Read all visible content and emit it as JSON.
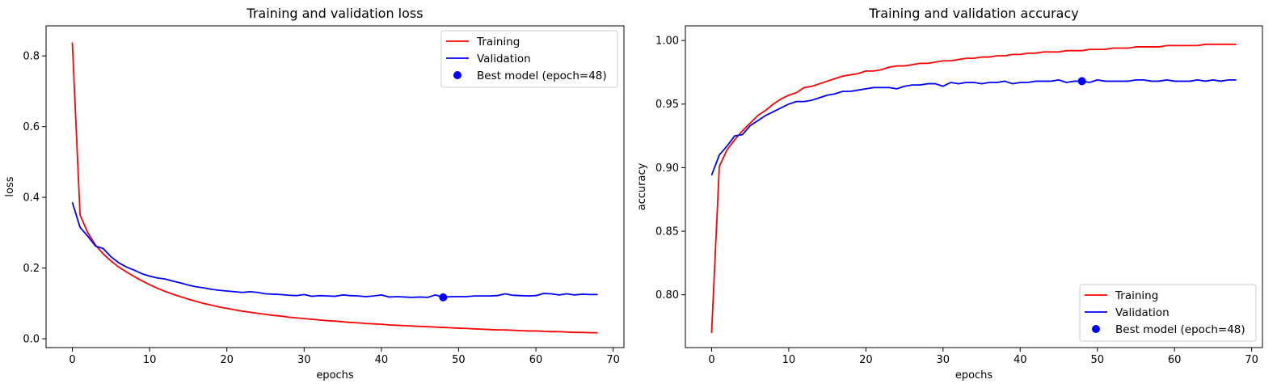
{
  "chart_data": [
    {
      "type": "line",
      "title": "Training and validation loss",
      "xlabel": "epochs",
      "ylabel": "loss",
      "xlim": [
        -3.4,
        71.4
      ],
      "ylim": [
        -0.025,
        0.885
      ],
      "xticks": [
        "0",
        "10",
        "20",
        "30",
        "40",
        "50",
        "60",
        "70"
      ],
      "yticks": [
        "0.0",
        "0.2",
        "0.4",
        "0.6",
        "0.8"
      ],
      "legend_position": "upper right",
      "series": [
        {
          "name": "Training",
          "color": "#ff0000",
          "x": [
            0,
            1,
            2,
            3,
            4,
            5,
            6,
            7,
            8,
            9,
            10,
            11,
            12,
            13,
            14,
            15,
            16,
            17,
            18,
            19,
            20,
            21,
            22,
            23,
            24,
            25,
            26,
            27,
            28,
            29,
            30,
            31,
            32,
            33,
            34,
            35,
            36,
            37,
            38,
            39,
            40,
            41,
            42,
            43,
            44,
            45,
            46,
            47,
            48,
            49,
            50,
            51,
            52,
            53,
            54,
            55,
            56,
            57,
            58,
            59,
            60,
            61,
            62,
            63,
            64,
            65,
            66,
            67,
            68
          ],
          "y": [
            0.838,
            0.35,
            0.3,
            0.265,
            0.24,
            0.22,
            0.203,
            0.189,
            0.176,
            0.164,
            0.153,
            0.143,
            0.134,
            0.126,
            0.119,
            0.112,
            0.106,
            0.1,
            0.095,
            0.09,
            0.086,
            0.082,
            0.078,
            0.075,
            0.072,
            0.069,
            0.066,
            0.064,
            0.061,
            0.059,
            0.057,
            0.055,
            0.053,
            0.051,
            0.05,
            0.048,
            0.046,
            0.045,
            0.043,
            0.042,
            0.041,
            0.039,
            0.038,
            0.037,
            0.036,
            0.035,
            0.034,
            0.033,
            0.032,
            0.031,
            0.03,
            0.029,
            0.028,
            0.027,
            0.026,
            0.025,
            0.025,
            0.024,
            0.023,
            0.022,
            0.022,
            0.021,
            0.02,
            0.02,
            0.019,
            0.018,
            0.018,
            0.017,
            0.017
          ]
        },
        {
          "name": "Validation",
          "color": "#0000ff",
          "x": [
            0,
            1,
            2,
            3,
            4,
            5,
            6,
            7,
            8,
            9,
            10,
            11,
            12,
            13,
            14,
            15,
            16,
            17,
            18,
            19,
            20,
            21,
            22,
            23,
            24,
            25,
            26,
            27,
            28,
            29,
            30,
            31,
            32,
            33,
            34,
            35,
            36,
            37,
            38,
            39,
            40,
            41,
            42,
            43,
            44,
            45,
            46,
            47,
            48,
            49,
            50,
            51,
            52,
            53,
            54,
            55,
            56,
            57,
            58,
            59,
            60,
            61,
            62,
            63,
            64,
            65,
            66,
            67,
            68
          ],
          "y": [
            0.386,
            0.315,
            0.29,
            0.262,
            0.255,
            0.232,
            0.215,
            0.203,
            0.194,
            0.184,
            0.177,
            0.172,
            0.169,
            0.163,
            0.158,
            0.152,
            0.147,
            0.144,
            0.14,
            0.137,
            0.135,
            0.133,
            0.131,
            0.133,
            0.131,
            0.127,
            0.126,
            0.125,
            0.123,
            0.122,
            0.125,
            0.12,
            0.122,
            0.121,
            0.12,
            0.124,
            0.122,
            0.121,
            0.119,
            0.121,
            0.124,
            0.118,
            0.119,
            0.118,
            0.117,
            0.118,
            0.117,
            0.124,
            0.117,
            0.119,
            0.119,
            0.119,
            0.121,
            0.121,
            0.121,
            0.122,
            0.127,
            0.123,
            0.122,
            0.121,
            0.122,
            0.128,
            0.127,
            0.124,
            0.127,
            0.124,
            0.126,
            0.125,
            0.125
          ]
        },
        {
          "name": "Best model (epoch=48)",
          "type": "scatter",
          "color": "#0000ff",
          "x": [
            48
          ],
          "y": [
            0.117
          ]
        }
      ]
    },
    {
      "type": "line",
      "title": "Training and validation accuracy",
      "xlabel": "epochs",
      "ylabel": "accuracy",
      "xlim": [
        -3.4,
        71.4
      ],
      "ylim": [
        0.7585,
        1.0115
      ],
      "xticks": [
        "0",
        "10",
        "20",
        "30",
        "40",
        "50",
        "60",
        "70"
      ],
      "yticks": [
        "0.80",
        "0.85",
        "0.90",
        "0.95",
        "1.00"
      ],
      "legend_position": "lower right",
      "series": [
        {
          "name": "Training",
          "color": "#ff0000",
          "x": [
            0,
            1,
            2,
            3,
            4,
            5,
            6,
            7,
            8,
            9,
            10,
            11,
            12,
            13,
            14,
            15,
            16,
            17,
            18,
            19,
            20,
            21,
            22,
            23,
            24,
            25,
            26,
            27,
            28,
            29,
            30,
            31,
            32,
            33,
            34,
            35,
            36,
            37,
            38,
            39,
            40,
            41,
            42,
            43,
            44,
            45,
            46,
            47,
            48,
            49,
            50,
            51,
            52,
            53,
            54,
            55,
            56,
            57,
            58,
            59,
            60,
            61,
            62,
            63,
            64,
            65,
            66,
            67,
            68
          ],
          "y": [
            0.77,
            0.901,
            0.914,
            0.922,
            0.929,
            0.935,
            0.941,
            0.945,
            0.95,
            0.954,
            0.957,
            0.959,
            0.963,
            0.964,
            0.966,
            0.968,
            0.97,
            0.972,
            0.973,
            0.974,
            0.976,
            0.976,
            0.977,
            0.979,
            0.98,
            0.98,
            0.981,
            0.982,
            0.982,
            0.983,
            0.984,
            0.984,
            0.985,
            0.986,
            0.986,
            0.987,
            0.987,
            0.988,
            0.988,
            0.989,
            0.989,
            0.99,
            0.99,
            0.991,
            0.991,
            0.991,
            0.992,
            0.992,
            0.992,
            0.993,
            0.993,
            0.993,
            0.994,
            0.994,
            0.994,
            0.995,
            0.995,
            0.995,
            0.995,
            0.996,
            0.996,
            0.996,
            0.996,
            0.996,
            0.997,
            0.997,
            0.997,
            0.997,
            0.997
          ]
        },
        {
          "name": "Validation",
          "color": "#0000ff",
          "x": [
            0,
            1,
            2,
            3,
            4,
            5,
            6,
            7,
            8,
            9,
            10,
            11,
            12,
            13,
            14,
            15,
            16,
            17,
            18,
            19,
            20,
            21,
            22,
            23,
            24,
            25,
            26,
            27,
            28,
            29,
            30,
            31,
            32,
            33,
            34,
            35,
            36,
            37,
            38,
            39,
            40,
            41,
            42,
            43,
            44,
            45,
            46,
            47,
            48,
            49,
            50,
            51,
            52,
            53,
            54,
            55,
            56,
            57,
            58,
            59,
            60,
            61,
            62,
            63,
            64,
            65,
            66,
            67,
            68
          ],
          "y": [
            0.894,
            0.91,
            0.917,
            0.925,
            0.926,
            0.933,
            0.937,
            0.941,
            0.944,
            0.947,
            0.95,
            0.952,
            0.952,
            0.953,
            0.955,
            0.957,
            0.958,
            0.96,
            0.96,
            0.961,
            0.962,
            0.963,
            0.963,
            0.963,
            0.962,
            0.964,
            0.965,
            0.965,
            0.966,
            0.966,
            0.964,
            0.967,
            0.966,
            0.967,
            0.967,
            0.966,
            0.967,
            0.967,
            0.968,
            0.966,
            0.967,
            0.967,
            0.968,
            0.968,
            0.968,
            0.969,
            0.967,
            0.968,
            0.968,
            0.967,
            0.969,
            0.968,
            0.968,
            0.968,
            0.968,
            0.969,
            0.969,
            0.968,
            0.968,
            0.969,
            0.968,
            0.968,
            0.968,
            0.969,
            0.968,
            0.969,
            0.968,
            0.969,
            0.969
          ]
        },
        {
          "name": "Best model (epoch=48)",
          "type": "scatter",
          "color": "#0000ff",
          "x": [
            48
          ],
          "y": [
            0.968
          ]
        }
      ]
    }
  ]
}
